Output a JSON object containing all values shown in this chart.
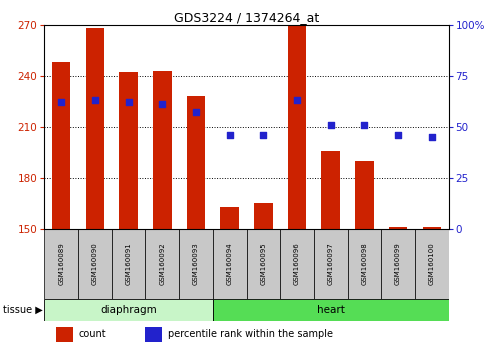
{
  "title": "GDS3224 / 1374264_at",
  "samples": [
    "GSM160089",
    "GSM160090",
    "GSM160091",
    "GSM160092",
    "GSM160093",
    "GSM160094",
    "GSM160095",
    "GSM160096",
    "GSM160097",
    "GSM160098",
    "GSM160099",
    "GSM160100"
  ],
  "counts": [
    248,
    268,
    242,
    243,
    228,
    163,
    165,
    270,
    196,
    190,
    151,
    151
  ],
  "percentiles": [
    62,
    63,
    62,
    61,
    57,
    46,
    46,
    63,
    51,
    51,
    46,
    45
  ],
  "ylim_left": [
    150,
    270
  ],
  "ylim_right": [
    0,
    100
  ],
  "yticks_left": [
    150,
    180,
    210,
    240,
    270
  ],
  "yticks_right": [
    0,
    25,
    50,
    75,
    100
  ],
  "tissue_groups": [
    {
      "label": "diaphragm",
      "start": 0,
      "end": 4,
      "color": "#AAEAAA"
    },
    {
      "label": "heart",
      "start": 5,
      "end": 11,
      "color": "#44DD44"
    }
  ],
  "bar_color": "#CC2200",
  "dot_color": "#2222CC",
  "background_color": "#ffffff",
  "left_axis_color": "#CC2200",
  "right_axis_color": "#2222CC",
  "bar_width": 0.55,
  "tissue_label": "tissue",
  "legend_count_label": "count",
  "legend_percentile_label": "percentile rank within the sample"
}
